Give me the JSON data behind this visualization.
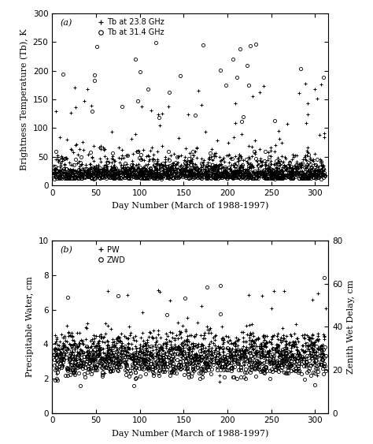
{
  "panel_a": {
    "label": "(a)",
    "xlabel": "Day Number (March of 1988-1997)",
    "ylabel": "Brightness Temperature (Tb), K",
    "ylim": [
      0,
      300
    ],
    "yticks": [
      0,
      50,
      100,
      150,
      200,
      250,
      300
    ],
    "xlim": [
      0,
      315
    ],
    "xticks": [
      0,
      50,
      100,
      150,
      200,
      250,
      300
    ],
    "legend_plus": "Tb at 23.8 GHz",
    "legend_circle": "Tb at 31.4 GHz"
  },
  "panel_b": {
    "label": "(b)",
    "xlabel": "Day Number (March of 1988-1997)",
    "ylabel": "Precipitable Water, cm",
    "ylabel_right": "Zenith Wet Delay, cm",
    "ylim": [
      0,
      10
    ],
    "yticks": [
      0,
      2,
      4,
      6,
      8,
      10
    ],
    "ylim_right": [
      0,
      80
    ],
    "yticks_right": [
      0,
      20,
      40,
      60,
      80
    ],
    "xlim": [
      0,
      315
    ],
    "xticks": [
      0,
      50,
      100,
      150,
      200,
      250,
      300
    ],
    "legend_plus": "PW",
    "legend_circle": "ZWD"
  },
  "seed": 12345,
  "n_main": 900,
  "n_spike": 30,
  "fontsize": 8,
  "tick_fontsize": 7.5
}
